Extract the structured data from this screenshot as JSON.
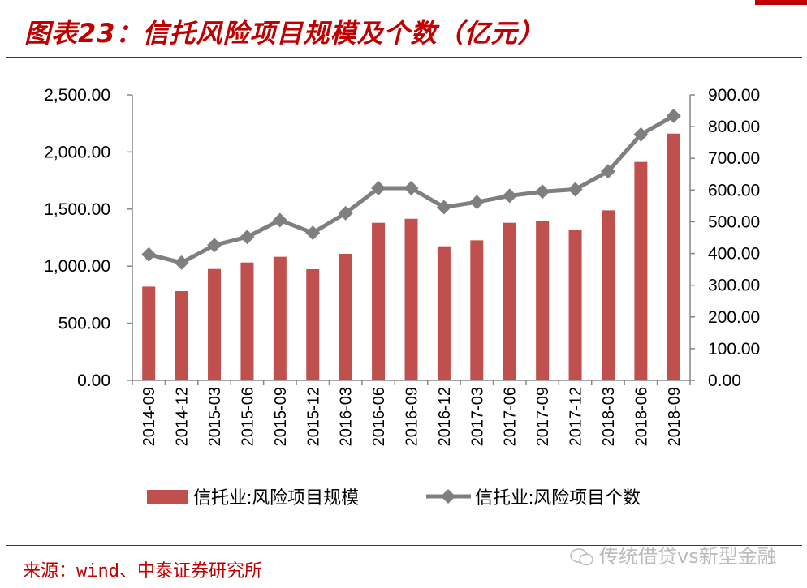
{
  "title": "图表23：信托风险项目规模及个数（亿元）",
  "source": "来源：wind、中泰证券研究所",
  "watermark": "传统借贷vs新型金融",
  "colors": {
    "bar": "#c0504d",
    "line": "#7f7f7f",
    "accent": "#c00000"
  },
  "chart_data": {
    "type": "bar+line",
    "categories": [
      "2014-09",
      "2014-12",
      "2015-03",
      "2015-06",
      "2015-09",
      "2015-12",
      "2016-03",
      "2016-06",
      "2016-09",
      "2016-12",
      "2017-03",
      "2017-06",
      "2017-09",
      "2017-12",
      "2018-03",
      "2018-06",
      "2018-09"
    ],
    "series": [
      {
        "name": "信托业:风险项目规模",
        "type": "bar",
        "axis": "left",
        "values": [
          821,
          781,
          975,
          1032,
          1082,
          973,
          1108,
          1380,
          1415,
          1174,
          1226,
          1380,
          1392,
          1314,
          1489,
          1913,
          2161
        ]
      },
      {
        "name": "信托业:风险项目个数",
        "type": "line",
        "marker": "diamond",
        "axis": "right",
        "values": [
          397,
          371,
          426,
          452,
          505,
          465,
          527,
          606,
          606,
          546,
          562,
          582,
          595,
          602,
          659,
          775,
          834
        ]
      }
    ],
    "left_axis": {
      "range": [
        0,
        2500
      ],
      "ticks": [
        "0.00",
        "500.00",
        "1,000.00",
        "1,500.00",
        "2,000.00",
        "2,500.00"
      ]
    },
    "right_axis": {
      "range": [
        0,
        900
      ],
      "ticks": [
        "0.00",
        "100.00",
        "200.00",
        "300.00",
        "400.00",
        "500.00",
        "600.00",
        "700.00",
        "800.00",
        "900.00"
      ]
    },
    "grid": false,
    "legend": "bottom"
  }
}
